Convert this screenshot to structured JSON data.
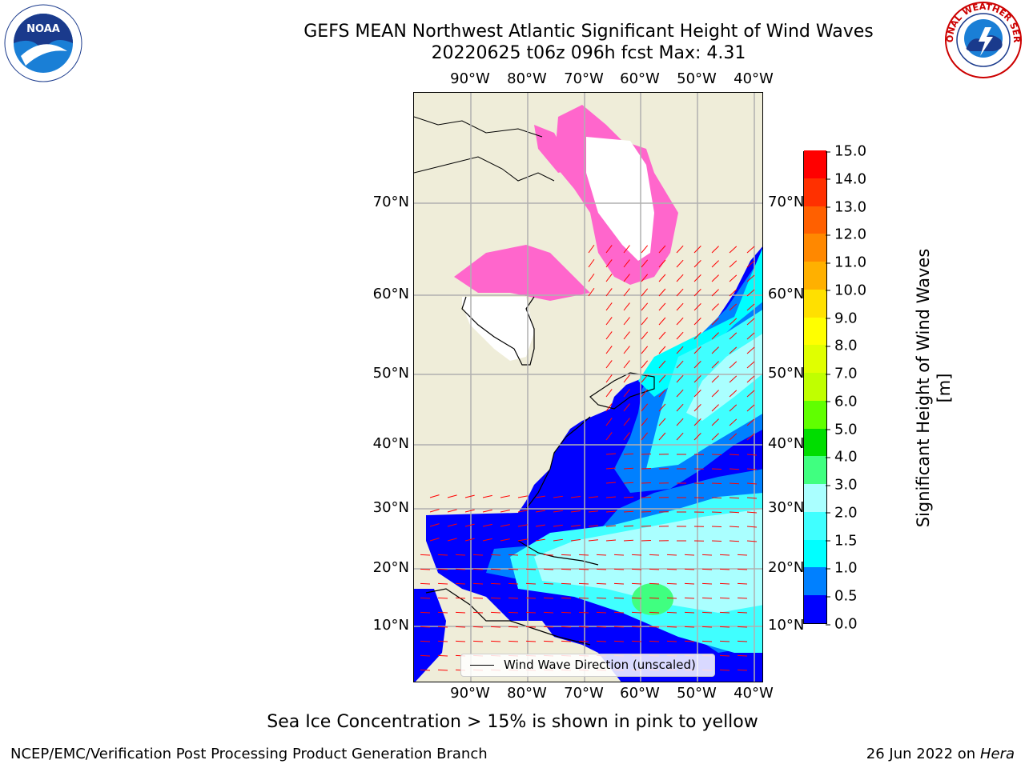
{
  "header": {
    "title_line1": "GEFS MEAN Northwest Atlantic Significant Height of Wind Waves",
    "title_line2": "20220625 t06z 096h fcst   Max: 4.31"
  },
  "map": {
    "lon_ticks": [
      "90°W",
      "80°W",
      "70°W",
      "60°W",
      "50°W",
      "40°W"
    ],
    "lat_ticks": [
      "70°N",
      "60°N",
      "50°N",
      "40°N",
      "30°N",
      "20°N",
      "10°N"
    ],
    "legend_label": "Wind Wave Direction (unscaled)",
    "colors": {
      "land": "#efedd9",
      "ice": "#ff66cc",
      "arrow": "#ff0000",
      "grid": "#b0b0b0"
    }
  },
  "colorbar": {
    "label": "Significant Height of Wind Waves [m]",
    "ticks": [
      "0.0",
      "0.5",
      "1.0",
      "1.5",
      "2.0",
      "3.0",
      "4.0",
      "5.0",
      "6.0",
      "7.0",
      "8.0",
      "9.0",
      "10.0",
      "11.0",
      "12.0",
      "13.0",
      "14.0",
      "15.0"
    ],
    "colors": [
      "#0000ff",
      "#0080ff",
      "#00ffff",
      "#40ffff",
      "#aaffff",
      "#40ff80",
      "#00dd00",
      "#60ff00",
      "#c0ff00",
      "#e0ff00",
      "#ffff00",
      "#ffe000",
      "#ffb000",
      "#ff8800",
      "#ff6000",
      "#ff3000",
      "#ff0000"
    ]
  },
  "subnote": "Sea Ice Concentration > 15% is shown in pink to yellow",
  "footer": {
    "left": "NCEP/EMC/Verification Post Processing Product Generation Branch",
    "date": "26 Jun 2022 on",
    "host": "Hera"
  },
  "logos": {
    "noaa_text": "NOAA",
    "noaa_ring": "NATIONAL OCEANIC AND ATMOSPHERIC ADMINISTRATION · U.S. DEPARTMENT OF COMMERCE",
    "nws_ring": "NATIONAL WEATHER SERVICE"
  }
}
